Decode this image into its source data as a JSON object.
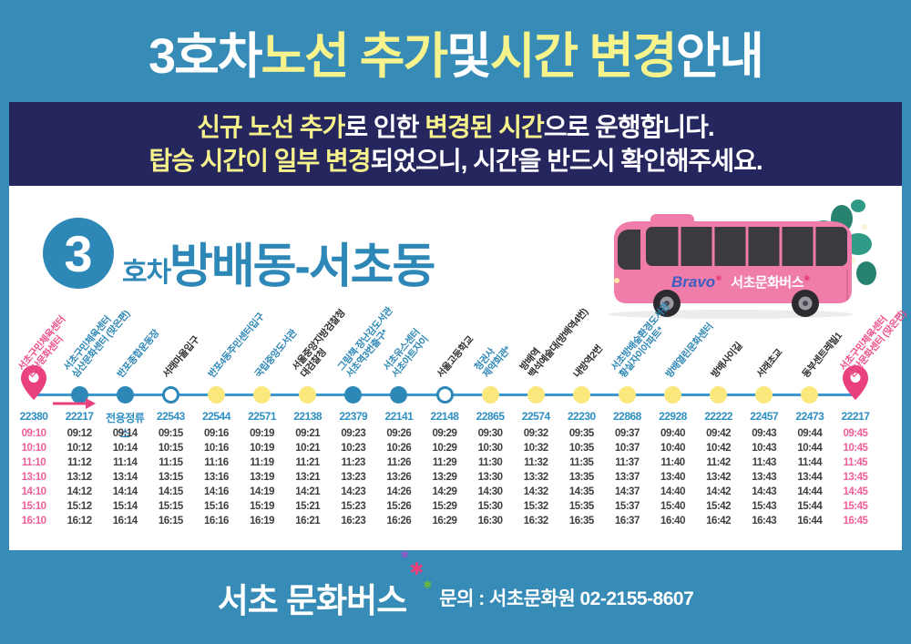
{
  "poster": {
    "title": {
      "segments": [
        {
          "text": "3호차 ",
          "color": "white"
        },
        {
          "text": "노선 추가",
          "color": "yellow"
        },
        {
          "text": " 및 ",
          "color": "white"
        },
        {
          "text": "시간 변경",
          "color": "yellow"
        },
        {
          "text": " 안내",
          "color": "white"
        }
      ]
    },
    "notice": {
      "line1": [
        {
          "text": "신규 노선 추가",
          "color": "yellow"
        },
        {
          "text": "로 인한 ",
          "color": "white"
        },
        {
          "text": "변경된 시간",
          "color": "yellow"
        },
        {
          "text": "으로 운행합니다.",
          "color": "white"
        }
      ],
      "line2": [
        {
          "text": "탑승 시간이 일부 변경",
          "color": "yellow"
        },
        {
          "text": "되었으니, 시간을 반드시 확인해주세요.",
          "color": "white"
        }
      ]
    },
    "route_header": {
      "number": "3",
      "suffix": "호차",
      "name": "방배동-서초동"
    },
    "bus": {
      "brand_script": "Bravo",
      "brand_text": "서초문화버스",
      "spark": "✱"
    },
    "route": {
      "stops": [
        {
          "label_lines": [
            "서초구민체육센터",
            "심산문화센터"
          ],
          "label_color": "pink",
          "marker": "pin",
          "code": "22380",
          "highlight": true,
          "times": [
            "09:10",
            "10:10",
            "11:10",
            "13:10",
            "14:10",
            "15:10",
            "16:10"
          ]
        },
        {
          "label_lines": [
            "서초구민체육센터",
            "심산문화센터 (맞은편)"
          ],
          "label_color": "blue",
          "marker": "blue",
          "code": "22217",
          "highlight": false,
          "times": [
            "09:12",
            "10:12",
            "11:12",
            "13:12",
            "14:12",
            "15:12",
            "16:12"
          ]
        },
        {
          "label_lines": [
            "반포종합운동장"
          ],
          "label_color": "blue",
          "marker": "blue",
          "code": "전용정류소",
          "highlight": false,
          "times": [
            "09:14",
            "10:14",
            "11:14",
            "13:14",
            "14:14",
            "15:14",
            "16:14"
          ]
        },
        {
          "label_lines": [
            "서래마을입구"
          ],
          "label_color": "black",
          "marker": "white",
          "code": "22543",
          "highlight": false,
          "times": [
            "09:15",
            "10:15",
            "11:15",
            "13:15",
            "14:15",
            "15:15",
            "16:15"
          ]
        },
        {
          "label_lines": [
            "반포4동주민센터입구"
          ],
          "label_color": "blue",
          "marker": "yellow",
          "code": "22544",
          "highlight": false,
          "times": [
            "09:16",
            "10:16",
            "11:16",
            "13:16",
            "14:16",
            "15:16",
            "16:16"
          ]
        },
        {
          "label_lines": [
            "국립중앙도서관"
          ],
          "label_color": "blue",
          "marker": "yellow",
          "code": "22571",
          "highlight": false,
          "times": [
            "09:19",
            "10:19",
            "11:19",
            "13:19",
            "14:19",
            "15:19",
            "16:19"
          ]
        },
        {
          "label_lines": [
            "서울중앙지방검찰청",
            "대검찰청"
          ],
          "label_color": "black",
          "marker": "yellow",
          "code": "22138",
          "highlight": false,
          "times": [
            "09:21",
            "10:21",
            "11:21",
            "13:21",
            "14:21",
            "15:21",
            "16:21"
          ]
        },
        {
          "label_lines": [
            "그림책·장난감도서관",
            "서초역3번출구*"
          ],
          "label_color": "blue",
          "marker": "blue",
          "code": "22379",
          "highlight": false,
          "times": [
            "09:23",
            "10:23",
            "11:23",
            "13:23",
            "14:23",
            "15:23",
            "16:23"
          ]
        },
        {
          "label_lines": [
            "서초유스센터",
            "서초아트자이"
          ],
          "label_color": "blue",
          "marker": "blue",
          "code": "22141",
          "highlight": false,
          "times": [
            "09:26",
            "10:26",
            "11:26",
            "13:26",
            "14:26",
            "15:26",
            "16:26"
          ]
        },
        {
          "label_lines": [
            "서울고등학교"
          ],
          "label_color": "black",
          "marker": "white",
          "code": "22148",
          "highlight": false,
          "times": [
            "09:29",
            "10:29",
            "11:29",
            "13:29",
            "14:29",
            "15:29",
            "16:29"
          ]
        },
        {
          "label_lines": [
            "청권사",
            "제약회관*"
          ],
          "label_color": "blue",
          "marker": "yellow",
          "code": "22865",
          "highlight": false,
          "times": [
            "09:30",
            "10:30",
            "11:30",
            "13:30",
            "14:30",
            "15:30",
            "16:30"
          ]
        },
        {
          "label_lines": [
            "방배역",
            "백석예술대(방배역4번)"
          ],
          "label_color": "black",
          "marker": "yellow",
          "code": "22574",
          "highlight": false,
          "times": [
            "09:32",
            "10:32",
            "11:32",
            "13:32",
            "14:32",
            "15:32",
            "16:32"
          ]
        },
        {
          "label_lines": [
            "내방역2번"
          ],
          "label_color": "black",
          "marker": "yellow",
          "code": "22230",
          "highlight": false,
          "times": [
            "09:35",
            "10:35",
            "11:35",
            "13:35",
            "14:35",
            "15:35",
            "16:35"
          ]
        },
        {
          "label_lines": [
            "서초방배숲환경도서관",
            "황실자이아파트*"
          ],
          "label_color": "blue",
          "marker": "yellow",
          "code": "22868",
          "highlight": false,
          "times": [
            "09:37",
            "10:37",
            "11:37",
            "13:37",
            "14:37",
            "15:37",
            "16:37"
          ]
        },
        {
          "label_lines": [
            "방배열린문화센터"
          ],
          "label_color": "blue",
          "marker": "yellow",
          "code": "22928",
          "highlight": false,
          "times": [
            "09:40",
            "10:40",
            "11:40",
            "13:40",
            "14:40",
            "15:40",
            "16:40"
          ]
        },
        {
          "label_lines": [
            "방배사이길"
          ],
          "label_color": "black",
          "marker": "yellow",
          "code": "22222",
          "highlight": false,
          "times": [
            "09:42",
            "10:42",
            "11:42",
            "13:42",
            "14:42",
            "15:42",
            "16:42"
          ]
        },
        {
          "label_lines": [
            "서래초교"
          ],
          "label_color": "black",
          "marker": "yellow",
          "code": "22457",
          "highlight": false,
          "times": [
            "09:43",
            "10:43",
            "11:43",
            "13:43",
            "14:43",
            "15:43",
            "16:43"
          ]
        },
        {
          "label_lines": [
            "동부센트레빌1"
          ],
          "label_color": "black",
          "marker": "yellow",
          "code": "22473",
          "highlight": false,
          "times": [
            "09:44",
            "10:44",
            "11:44",
            "13:44",
            "14:44",
            "15:44",
            "16:44"
          ]
        },
        {
          "label_lines": [
            "서초구민체육센터",
            "심산문화센터 (맞은편)"
          ],
          "label_color": "pink",
          "marker": "pin",
          "code": "22217",
          "highlight": true,
          "times": [
            "09:45",
            "10:45",
            "11:45",
            "13:45",
            "14:45",
            "15:45",
            "16:45"
          ]
        }
      ]
    },
    "footer": {
      "logo": "서초 문화버스",
      "sparkle": "✱",
      "contact": "문의 : 서초문화원 02-2155-8607"
    },
    "colors": {
      "white": "#ffffff",
      "yellow": "#f6f28c",
      "frame_blue": "#368bb7",
      "navy": "#26265e",
      "accent_blue": "#2d87b7",
      "line_blue": "#3e97cf",
      "dot_yellow": "#fbe87c",
      "pink": "#e8417e",
      "label_pink": "#ed4f8a",
      "label_blue": "#2d87b7",
      "label_black": "#2e2e2e",
      "time_pink": "#ee5f99",
      "time_dark": "#3f3f3f",
      "code_blue": "#2e8fc2",
      "bus_pink": "#f07ca9"
    }
  }
}
